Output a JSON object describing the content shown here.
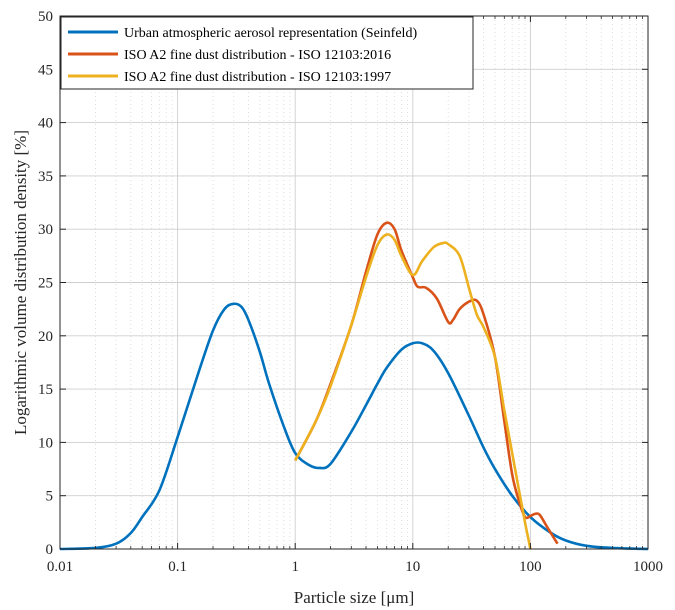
{
  "chart_data": {
    "type": "line",
    "title": "",
    "xlabel": "Particle size [μm]",
    "ylabel": "Logarithmic volume distribution density [%]",
    "x_scale": "log",
    "xlim": [
      0.01,
      1000
    ],
    "ylim": [
      0,
      50
    ],
    "x_ticks": [
      0.01,
      0.1,
      1,
      10,
      100,
      1000
    ],
    "x_tick_labels": [
      "0.01",
      "0.1",
      "1",
      "10",
      "100",
      "1000"
    ],
    "y_ticks": [
      0,
      5,
      10,
      15,
      20,
      25,
      30,
      35,
      40,
      45,
      50
    ],
    "y_tick_labels": [
      "0",
      "5",
      "10",
      "15",
      "20",
      "25",
      "30",
      "35",
      "40",
      "45",
      "50"
    ],
    "grid": true,
    "legend_position": "top-left",
    "series": [
      {
        "name": "Urban atmospheric aerosol representation (Seinfeld)",
        "color": "#0072BD",
        "points": [
          [
            0.01,
            0
          ],
          [
            0.02,
            0.1
          ],
          [
            0.03,
            0.5
          ],
          [
            0.04,
            1.5
          ],
          [
            0.05,
            3
          ],
          [
            0.07,
            5.5
          ],
          [
            0.1,
            10.5
          ],
          [
            0.15,
            16.5
          ],
          [
            0.2,
            20.5
          ],
          [
            0.25,
            22.5
          ],
          [
            0.3,
            23
          ],
          [
            0.35,
            22.7
          ],
          [
            0.4,
            21.5
          ],
          [
            0.5,
            18.5
          ],
          [
            0.6,
            15.5
          ],
          [
            0.8,
            11.5
          ],
          [
            1,
            9
          ],
          [
            1.3,
            7.9
          ],
          [
            1.6,
            7.6
          ],
          [
            2,
            8
          ],
          [
            3,
            11
          ],
          [
            4,
            13.5
          ],
          [
            5,
            15.5
          ],
          [
            6,
            17
          ],
          [
            8,
            18.7
          ],
          [
            10,
            19.3
          ],
          [
            12,
            19.3
          ],
          [
            15,
            18.6
          ],
          [
            20,
            16.5
          ],
          [
            30,
            12.5
          ],
          [
            40,
            9.5
          ],
          [
            50,
            7.5
          ],
          [
            70,
            5
          ],
          [
            100,
            3
          ],
          [
            150,
            1.5
          ],
          [
            200,
            0.8
          ],
          [
            300,
            0.3
          ],
          [
            500,
            0.1
          ],
          [
            1000,
            0
          ]
        ]
      },
      {
        "name": "ISO A2 fine dust distribution - ISO 12103:2016",
        "color": "#D95319",
        "points": [
          [
            1,
            8.3
          ],
          [
            1.5,
            12
          ],
          [
            2,
            15.5
          ],
          [
            3,
            21
          ],
          [
            4,
            26
          ],
          [
            5,
            29.5
          ],
          [
            6,
            30.6
          ],
          [
            7,
            30
          ],
          [
            8,
            28
          ],
          [
            10,
            25.5
          ],
          [
            11,
            24.6
          ],
          [
            13,
            24.5
          ],
          [
            16,
            23.5
          ],
          [
            20,
            21.3
          ],
          [
            22,
            21.5
          ],
          [
            25,
            22.5
          ],
          [
            30,
            23.2
          ],
          [
            35,
            23.3
          ],
          [
            40,
            22
          ],
          [
            50,
            18
          ],
          [
            60,
            12
          ],
          [
            70,
            7
          ],
          [
            80,
            4.5
          ],
          [
            90,
            3
          ],
          [
            100,
            3.1
          ],
          [
            110,
            3.3
          ],
          [
            120,
            3.2
          ],
          [
            140,
            2
          ],
          [
            170,
            0.5
          ]
        ]
      },
      {
        "name": "ISO A2 fine dust distribution - ISO 12103:1997",
        "color": "#EDB120",
        "points": [
          [
            1,
            8.3
          ],
          [
            1.5,
            12
          ],
          [
            2,
            15.3
          ],
          [
            3,
            21
          ],
          [
            4,
            25.5
          ],
          [
            5,
            28.5
          ],
          [
            6,
            29.5
          ],
          [
            7,
            29
          ],
          [
            8,
            27.5
          ],
          [
            10,
            25.7
          ],
          [
            12,
            27
          ],
          [
            15,
            28.3
          ],
          [
            18,
            28.7
          ],
          [
            20,
            28.6
          ],
          [
            25,
            27.5
          ],
          [
            30,
            24.5
          ],
          [
            35,
            22
          ],
          [
            40,
            20.8
          ],
          [
            50,
            18
          ],
          [
            60,
            13
          ],
          [
            70,
            9
          ],
          [
            80,
            5.5
          ],
          [
            90,
            2.5
          ],
          [
            100,
            0
          ]
        ]
      }
    ]
  }
}
